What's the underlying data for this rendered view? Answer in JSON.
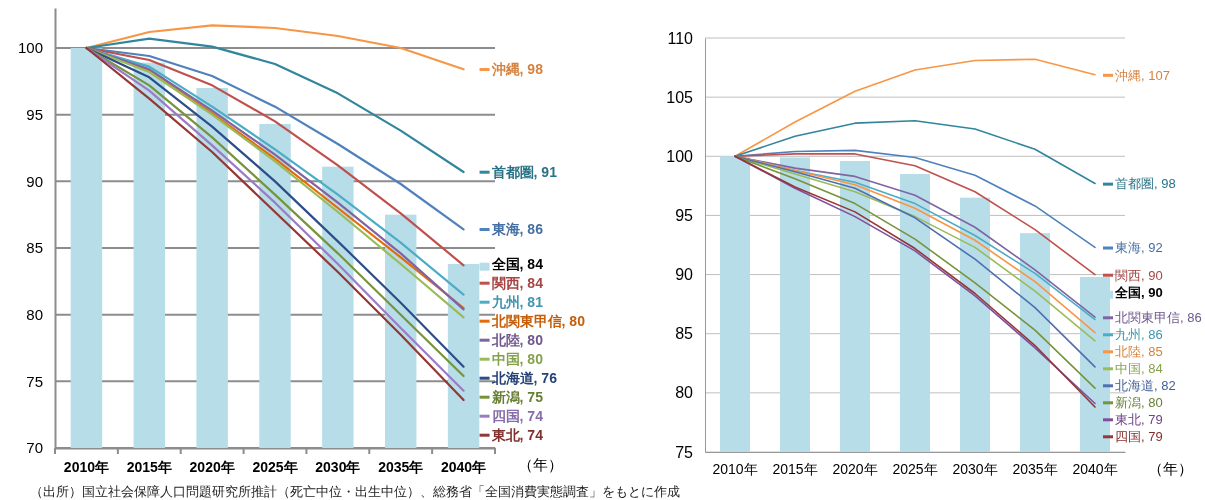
{
  "chart_data": [
    {
      "type": "line",
      "xlabel": "（年）",
      "categories": [
        "2010年",
        "2015年",
        "2020年",
        "2025年",
        "2030年",
        "2035年",
        "2040年"
      ],
      "ylim": [
        70,
        103
      ],
      "yticks": [
        70,
        75,
        80,
        85,
        90,
        95,
        100
      ],
      "grid": "y",
      "legend": "right",
      "annotations": [
        "（出所）国立社会保障人口問題研究所推計（死亡中位・出生中位）、総務省「全国消費実態調査」をもとに作成"
      ],
      "series": [
        {
          "type": "bar",
          "name": "全国, 84",
          "color": "#b7dde8",
          "values": [
            100,
            98.9,
            97.0,
            94.3,
            91.1,
            87.5,
            83.8
          ]
        },
        {
          "name": "沖縄, 98",
          "color": "#f79646",
          "values": [
            100,
            101.2,
            101.7,
            101.5,
            100.9,
            100.0,
            98.4
          ]
        },
        {
          "name": "首都圏, 91",
          "color": "#31859c",
          "values": [
            100,
            100.7,
            100.1,
            98.8,
            96.6,
            93.8,
            90.7
          ]
        },
        {
          "name": "東海, 86",
          "color": "#4f81bd",
          "values": [
            100,
            99.4,
            97.9,
            95.6,
            92.8,
            89.8,
            86.4
          ]
        },
        {
          "name": "関西, 84",
          "color": "#c0504d",
          "values": [
            100,
            99.1,
            97.2,
            94.5,
            91.2,
            87.6,
            83.7
          ]
        },
        {
          "name": "九州, 81",
          "color": "#4bacc6",
          "values": [
            100,
            98.6,
            95.6,
            92.4,
            89.0,
            85.4,
            81.5
          ]
        },
        {
          "name": "北関東甲信, 80",
          "color": "#e46c0a",
          "values": [
            100,
            98.3,
            95.1,
            91.7,
            88.0,
            84.3,
            80.5
          ]
        },
        {
          "name": "北陸, 80",
          "color": "#8064a2",
          "values": [
            100,
            98.4,
            95.3,
            92.0,
            88.4,
            84.6,
            80.4
          ]
        },
        {
          "name": "中国, 80",
          "color": "#9bbb59",
          "values": [
            100,
            98.2,
            95.0,
            91.5,
            87.7,
            83.8,
            79.8
          ]
        },
        {
          "name": "北海道, 76",
          "color": "#2c4d8a",
          "values": [
            100,
            97.8,
            94.1,
            90.0,
            85.5,
            80.9,
            76.1
          ]
        },
        {
          "name": "新潟, 75",
          "color": "#77933c",
          "values": [
            100,
            97.2,
            93.3,
            89.0,
            84.6,
            80.0,
            75.4
          ]
        },
        {
          "name": "四国, 74",
          "color": "#9b7cc4",
          "values": [
            100,
            96.8,
            92.7,
            88.4,
            83.8,
            79.0,
            74.3
          ]
        },
        {
          "name": "東北, 74",
          "color": "#953735",
          "values": [
            100,
            96.2,
            92.2,
            87.7,
            83.2,
            78.5,
            73.6
          ]
        }
      ]
    },
    {
      "type": "line",
      "xlabel": "（年）",
      "categories": [
        "2010年",
        "2015年",
        "2020年",
        "2025年",
        "2030年",
        "2035年",
        "2040年"
      ],
      "ylim": [
        75,
        110
      ],
      "yticks": [
        75,
        80,
        85,
        90,
        95,
        100,
        105,
        110
      ],
      "grid": "y",
      "legend": "right",
      "series": [
        {
          "type": "bar",
          "name": "全国, 90",
          "color": "#b7dde8",
          "values": [
            100,
            99.9,
            99.6,
            98.5,
            96.5,
            93.5,
            89.8
          ]
        },
        {
          "name": "沖縄, 107",
          "color": "#f79646",
          "values": [
            100,
            102.9,
            105.5,
            107.3,
            108.1,
            108.2,
            106.9
          ]
        },
        {
          "name": "首都圏, 98",
          "color": "#31859c",
          "values": [
            100,
            101.7,
            102.8,
            103.0,
            102.3,
            100.6,
            97.7
          ]
        },
        {
          "name": "東海, 92",
          "color": "#4f81bd",
          "values": [
            100,
            100.4,
            100.5,
            99.9,
            98.4,
            95.8,
            92.3
          ]
        },
        {
          "name": "関西, 90",
          "color": "#c0504d",
          "values": [
            100,
            100.2,
            100.2,
            99.2,
            97.0,
            93.8,
            90.0
          ]
        },
        {
          "name": "北関東甲信, 86",
          "color": "#8064a2",
          "values": [
            100,
            99.0,
            98.3,
            96.7,
            94.0,
            90.4,
            86.4
          ]
        },
        {
          "name": "九州, 86",
          "color": "#4bacc6",
          "values": [
            100,
            98.8,
            97.8,
            96.0,
            93.3,
            90.1,
            86.2
          ]
        },
        {
          "name": "北陸, 85",
          "color": "#f79646",
          "values": [
            100,
            98.8,
            97.6,
            95.6,
            92.9,
            89.4,
            85.1
          ]
        },
        {
          "name": "中国, 84",
          "color": "#9bbb59",
          "values": [
            100,
            98.5,
            97.0,
            94.9,
            92.3,
            88.6,
            84.4
          ]
        },
        {
          "name": "北海道, 82",
          "color": "#4f6fb0",
          "values": [
            100,
            98.7,
            97.3,
            94.8,
            91.3,
            87.2,
            82.2
          ]
        },
        {
          "name": "新潟, 80",
          "color": "#77933c",
          "values": [
            100,
            98.1,
            96.0,
            93.0,
            89.3,
            85.3,
            80.4
          ]
        },
        {
          "name": "東北, 79",
          "color": "#7f4f9f",
          "values": [
            100,
            97.3,
            94.9,
            92.0,
            88.2,
            83.8,
            79.1
          ]
        },
        {
          "name": "四国, 79",
          "color": "#953735",
          "values": [
            100,
            97.4,
            95.3,
            92.2,
            88.4,
            84.0,
            78.8
          ]
        }
      ]
    }
  ]
}
